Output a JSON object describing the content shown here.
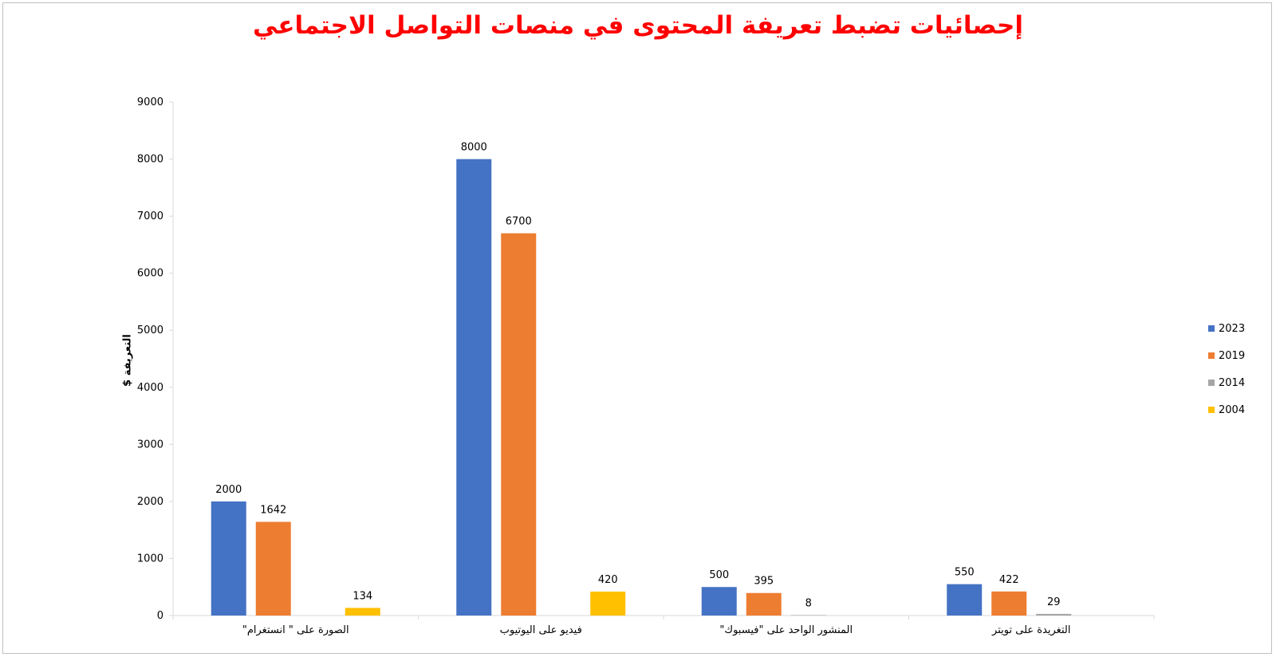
{
  "chart_data": {
    "type": "bar",
    "title": "إحصائيات تضبط تعريفة المحتوى في منصات التواصل الاجتماعي",
    "ylabel": "التعريفة $",
    "xlabel": "",
    "ylim": [
      0,
      9000
    ],
    "yticks": [
      0,
      1000,
      2000,
      3000,
      4000,
      5000,
      6000,
      7000,
      8000,
      9000
    ],
    "grid": false,
    "legend_position": "right",
    "categories": [
      "الصورة على \" انستغرام\"",
      "فيديو على اليوتيوب",
      "المنشور الواحد على \"فيسبوك\"",
      "التغريدة على تويتر"
    ],
    "series": [
      {
        "name": "2023",
        "color": "#4472c4",
        "values": [
          2000,
          8000,
          500,
          550
        ]
      },
      {
        "name": "2019",
        "color": "#ed7d31",
        "values": [
          1642,
          6700,
          395,
          422
        ]
      },
      {
        "name": "2014",
        "color": "#a5a5a5",
        "values": [
          null,
          null,
          8,
          29
        ]
      },
      {
        "name": "2004",
        "color": "#ffc000",
        "values": [
          134,
          420,
          null,
          null
        ]
      }
    ]
  }
}
